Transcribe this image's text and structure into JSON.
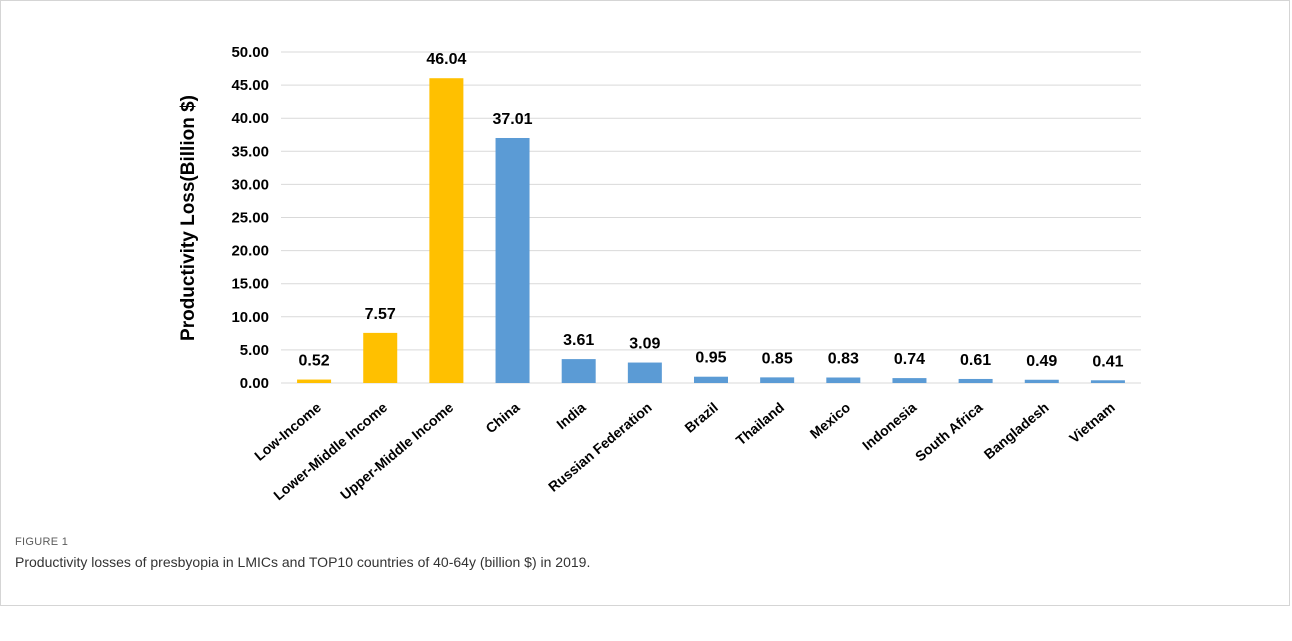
{
  "figure": {
    "label": "FIGURE 1",
    "caption": "Productivity losses of presbyopia in LMICs and TOP10 countries of 40-64y (billion $) in 2019."
  },
  "colors": {
    "income_group": "#FFC000",
    "country": "#5B9BD5",
    "grid": "#d9d9d9"
  },
  "chart_data": {
    "type": "bar",
    "title": "",
    "xlabel": "",
    "ylabel": "Productivity Loss(Billion $)",
    "ylim": [
      0,
      50
    ],
    "yticks": [
      "0.00",
      "5.00",
      "10.00",
      "15.00",
      "20.00",
      "25.00",
      "30.00",
      "35.00",
      "40.00",
      "45.00",
      "50.00"
    ],
    "grid": true,
    "legend": "none",
    "categories": [
      "Low-Income",
      "Lower-Middle Income",
      "Upper-Middle Income",
      "China",
      "India",
      "Russian Federation",
      "Brazil",
      "Thailand",
      "Mexico",
      "Indonesia",
      "South Africa",
      "Bangladesh",
      "Vietnam"
    ],
    "values": [
      0.52,
      7.57,
      46.04,
      37.01,
      3.61,
      3.09,
      0.95,
      0.85,
      0.83,
      0.74,
      0.61,
      0.49,
      0.41
    ],
    "value_labels": [
      "0.52",
      "7.57",
      "46.04",
      "37.01",
      "3.61",
      "3.09",
      "0.95",
      "0.85",
      "0.83",
      "0.74",
      "0.61",
      "0.49",
      "0.41"
    ],
    "bar_groups": [
      "income",
      "income",
      "income",
      "country",
      "country",
      "country",
      "country",
      "country",
      "country",
      "country",
      "country",
      "country",
      "country"
    ]
  }
}
